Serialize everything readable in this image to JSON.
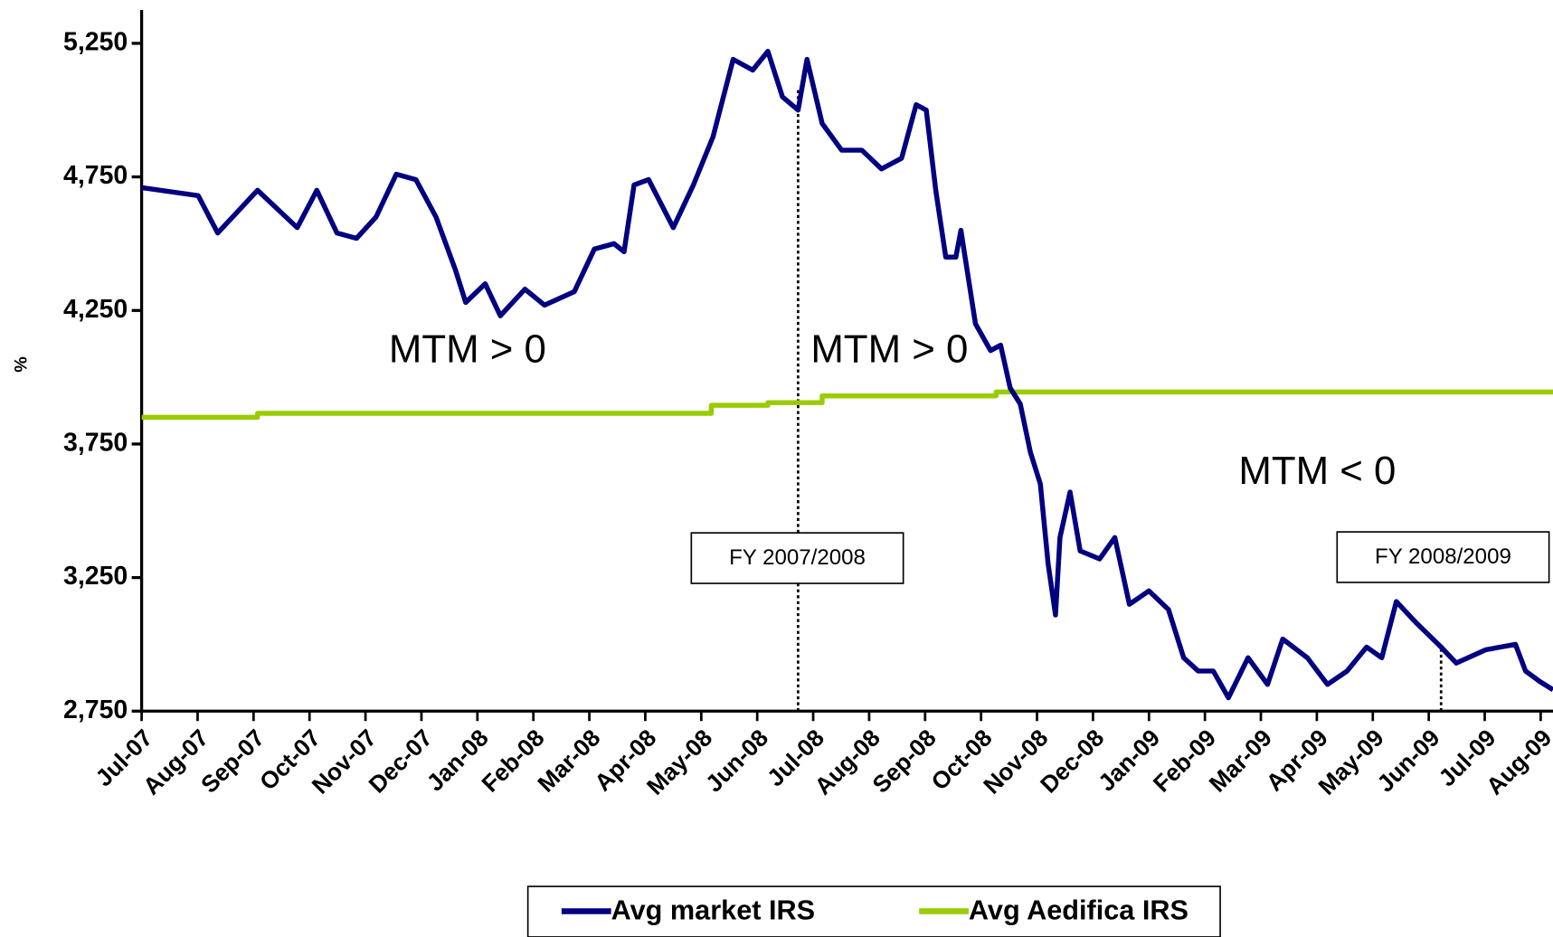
{
  "chart_data": {
    "type": "line",
    "y_label": "%",
    "ylim": [
      2750,
      5375
    ],
    "yticks": [
      {
        "value": 2750,
        "label": "2,750"
      },
      {
        "value": 3250,
        "label": "3,250"
      },
      {
        "value": 3750,
        "label": "3,750"
      },
      {
        "value": 4250,
        "label": "4,250"
      },
      {
        "value": 4750,
        "label": "4,750"
      },
      {
        "value": 5250,
        "label": "5,250"
      }
    ],
    "xlim": [
      0,
      25.22
    ],
    "xticks": [
      {
        "value": 0,
        "label": "Jul-07"
      },
      {
        "value": 1,
        "label": "Aug-07"
      },
      {
        "value": 2,
        "label": "Sep-07"
      },
      {
        "value": 3,
        "label": "Oct-07"
      },
      {
        "value": 4,
        "label": "Nov-07"
      },
      {
        "value": 5,
        "label": "Dec-07"
      },
      {
        "value": 6,
        "label": "Jan-08"
      },
      {
        "value": 7,
        "label": "Feb-08"
      },
      {
        "value": 8,
        "label": "Mar-08"
      },
      {
        "value": 9,
        "label": "Apr-08"
      },
      {
        "value": 10,
        "label": "May-08"
      },
      {
        "value": 11,
        "label": "Jun-08"
      },
      {
        "value": 12,
        "label": "Jul-08"
      },
      {
        "value": 13,
        "label": "Aug-08"
      },
      {
        "value": 14,
        "label": "Sep-08"
      },
      {
        "value": 15,
        "label": "Oct-08"
      },
      {
        "value": 16,
        "label": "Nov-08"
      },
      {
        "value": 17,
        "label": "Dec-08"
      },
      {
        "value": 18,
        "label": "Jan-09"
      },
      {
        "value": 19,
        "label": "Feb-09"
      },
      {
        "value": 20,
        "label": "Mar-09"
      },
      {
        "value": 21,
        "label": "Apr-09"
      },
      {
        "value": 22,
        "label": "May-09"
      },
      {
        "value": 23,
        "label": "Jun-09"
      },
      {
        "value": 24,
        "label": "Jul-09"
      },
      {
        "value": 25,
        "label": "Aug-09"
      }
    ],
    "series": [
      {
        "name": "Avg market IRS",
        "color": "#000080",
        "x": [
          0,
          1.01,
          1.36,
          2.07,
          2.78,
          3.13,
          3.49,
          3.84,
          4.19,
          4.55,
          4.9,
          5.26,
          5.61,
          5.79,
          6.14,
          6.41,
          6.85,
          7.2,
          7.73,
          8.09,
          8.44,
          8.62,
          8.8,
          9.06,
          9.5,
          9.86,
          10.21,
          10.57,
          10.92,
          11.19,
          11.45,
          11.73,
          11.89,
          12.16,
          12.51,
          12.87,
          13.22,
          13.58,
          13.84,
          14.02,
          14.19,
          14.37,
          14.55,
          14.64,
          14.9,
          15.17,
          15.35,
          15.52,
          15.7,
          15.88,
          16.06,
          16.2,
          16.33,
          16.41,
          16.59,
          16.77,
          17.12,
          17.39,
          17.65,
          18.0,
          18.35,
          18.62,
          18.88,
          19.15,
          19.42,
          19.77,
          20.12,
          20.39,
          20.83,
          21.19,
          21.54,
          21.89,
          22.16,
          22.42,
          22.78,
          23.22,
          23.49,
          24.02,
          24.55,
          24.73,
          24.99,
          25.22
        ],
        "values": [
          4710,
          4680,
          4540,
          4700,
          4560,
          4700,
          4540,
          4520,
          4600,
          4760,
          4740,
          4600,
          4400,
          4280,
          4350,
          4230,
          4330,
          4270,
          4320,
          4480,
          4500,
          4470,
          4720,
          4740,
          4560,
          4720,
          4900,
          5190,
          5150,
          5220,
          5050,
          5000,
          5190,
          4950,
          4850,
          4850,
          4780,
          4820,
          5020,
          5000,
          4700,
          4450,
          4450,
          4550,
          4200,
          4100,
          4120,
          3960,
          3900,
          3720,
          3600,
          3300,
          3110,
          3400,
          3570,
          3350,
          3320,
          3400,
          3150,
          3200,
          3130,
          2950,
          2900,
          2900,
          2800,
          2950,
          2850,
          3020,
          2950,
          2850,
          2900,
          2990,
          2950,
          3160,
          3080,
          2990,
          2930,
          2980,
          3000,
          2900,
          2860,
          2830
        ]
      },
      {
        "name": "Avg Aedifica IRS",
        "color": "#99cc00",
        "x": [
          0,
          2.07,
          2.07,
          10.18,
          10.18,
          11.19,
          11.19,
          12.16,
          12.16,
          15.27,
          15.27,
          25.22
        ],
        "values": [
          3850,
          3850,
          3865,
          3865,
          3895,
          3895,
          3905,
          3905,
          3930,
          3930,
          3945,
          3945
        ]
      }
    ],
    "annotations": [
      {
        "text": "MTM > 0"
      },
      {
        "text": "MTM > 0"
      },
      {
        "text": "MTM < 0"
      },
      {
        "text": "FY 2007/2008",
        "x": 11.73,
        "y": 5080
      },
      {
        "text": "FY 2008/2009",
        "x": 23.22,
        "y": 3000
      }
    ],
    "legend": "bottom"
  }
}
